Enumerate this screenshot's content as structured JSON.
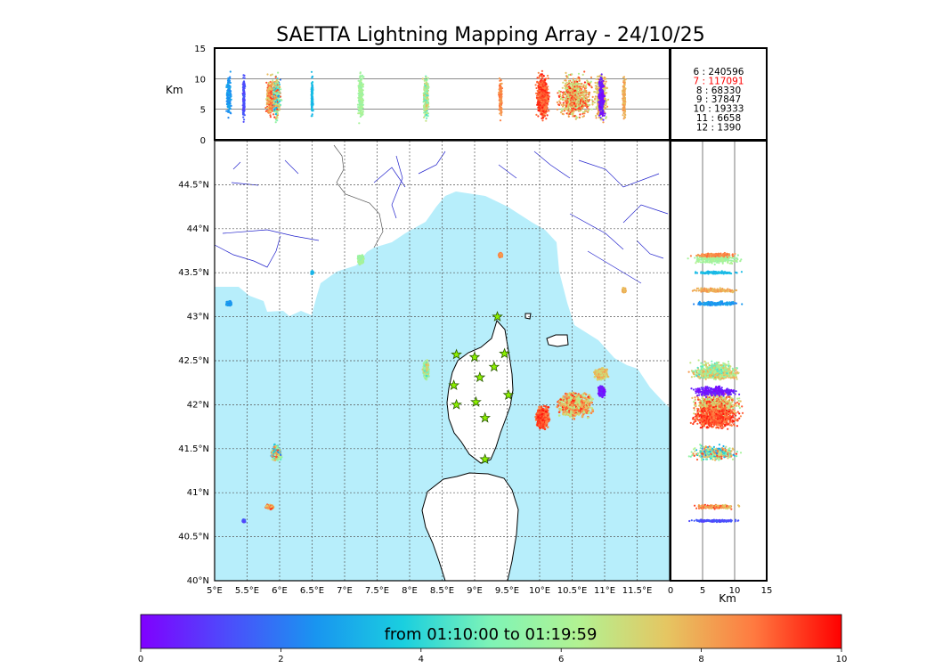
{
  "title": "SAETTA Lightning Mapping Array - 24/10/25",
  "chart_data": [
    {
      "type": "scatter",
      "panel": "map",
      "xlim": [
        5,
        12
      ],
      "ylim": [
        40,
        45
      ],
      "x_ticks": [
        "5°E",
        "5.5°E",
        "6°E",
        "6.5°E",
        "7°E",
        "7.5°E",
        "8°E",
        "8.5°E",
        "9°E",
        "9.5°E",
        "10°E",
        "10.5°E",
        "11°E",
        "11.5°E"
      ],
      "y_ticks": [
        "40°N",
        "40.5°N",
        "41°N",
        "41.5°N",
        "42°N",
        "42.5°N",
        "43°N",
        "43.5°N",
        "44°N",
        "44.5°N"
      ],
      "grid": true,
      "sea_color": "#b7eefb",
      "stations": [
        {
          "lon": 9.35,
          "lat": 43.0
        },
        {
          "lon": 8.72,
          "lat": 42.57
        },
        {
          "lon": 9.0,
          "lat": 42.54
        },
        {
          "lon": 9.46,
          "lat": 42.58
        },
        {
          "lon": 9.3,
          "lat": 42.43
        },
        {
          "lon": 9.08,
          "lat": 42.31
        },
        {
          "lon": 8.68,
          "lat": 42.22
        },
        {
          "lon": 9.52,
          "lat": 42.11
        },
        {
          "lon": 8.72,
          "lat": 42.0
        },
        {
          "lon": 9.02,
          "lat": 42.03
        },
        {
          "lon": 9.16,
          "lat": 41.85
        },
        {
          "lon": 9.16,
          "lat": 41.38
        }
      ],
      "clusters": [
        {
          "lon": 10.55,
          "lat": 42.0,
          "spread_lon": 0.32,
          "spread_lat": 0.17,
          "t_min": 6.0,
          "t_max": 9.8
        },
        {
          "lon": 10.05,
          "lat": 41.85,
          "spread_lon": 0.12,
          "spread_lat": 0.15,
          "t_min": 8.5,
          "t_max": 9.8
        },
        {
          "lon": 10.95,
          "lat": 42.35,
          "spread_lon": 0.12,
          "spread_lat": 0.08,
          "t_min": 6.5,
          "t_max": 8.5
        },
        {
          "lon": 10.95,
          "lat": 42.15,
          "spread_lon": 0.06,
          "spread_lat": 0.07,
          "t_min": 0.0,
          "t_max": 0.8
        },
        {
          "lon": 8.25,
          "lat": 42.4,
          "spread_lon": 0.05,
          "spread_lat": 0.12,
          "t_min": 4.2,
          "t_max": 7.8
        },
        {
          "lon": 5.95,
          "lat": 41.45,
          "spread_lon": 0.09,
          "spread_lat": 0.1,
          "t_min": 2.0,
          "t_max": 9.5
        },
        {
          "lon": 5.85,
          "lat": 40.84,
          "spread_lon": 0.07,
          "spread_lat": 0.03,
          "t_min": 7.0,
          "t_max": 9.5
        },
        {
          "lon": 5.22,
          "lat": 43.15,
          "spread_lon": 0.05,
          "spread_lat": 0.03,
          "t_min": 2.2,
          "t_max": 3.0
        },
        {
          "lon": 7.25,
          "lat": 43.65,
          "spread_lon": 0.05,
          "spread_lat": 0.06,
          "t_min": 5.5,
          "t_max": 6.3
        },
        {
          "lon": 9.4,
          "lat": 43.7,
          "spread_lon": 0.03,
          "spread_lat": 0.03,
          "t_min": 8.0,
          "t_max": 9.0
        },
        {
          "lon": 11.3,
          "lat": 43.3,
          "spread_lon": 0.03,
          "spread_lat": 0.03,
          "t_min": 7.5,
          "t_max": 8.5
        },
        {
          "lon": 6.5,
          "lat": 43.5,
          "spread_lon": 0.02,
          "spread_lat": 0.02,
          "t_min": 3.0,
          "t_max": 3.6
        },
        {
          "lon": 5.45,
          "lat": 40.68,
          "spread_lon": 0.02,
          "spread_lat": 0.02,
          "t_min": 1.0,
          "t_max": 1.6
        }
      ]
    },
    {
      "type": "scatter",
      "panel": "longitude-height",
      "xlim": [
        5,
        12
      ],
      "ylim": [
        0,
        15
      ],
      "ylabel": "Km",
      "y_ticks": [
        "0",
        "5",
        "10",
        "15"
      ],
      "hlines": [
        5,
        10
      ]
    },
    {
      "type": "scatter",
      "panel": "height-latitude",
      "xlim": [
        0,
        15
      ],
      "ylim": [
        40,
        45
      ],
      "xlabel": "Km",
      "x_ticks": [
        "0",
        "5",
        "10",
        "15"
      ],
      "vlines": [
        5,
        10
      ]
    }
  ],
  "counts": [
    {
      "label": "6  :   240596",
      "color": "#000000"
    },
    {
      "label": "7  :   117091",
      "color": "#ff0000"
    },
    {
      "label": "8  :    68330",
      "color": "#000000"
    },
    {
      "label": "9  :    37847",
      "color": "#000000"
    },
    {
      "label": "10  :     19333",
      "color": "#000000"
    },
    {
      "label": "11  :      6658",
      "color": "#000000"
    },
    {
      "label": "12  :      1390",
      "color": "#000000"
    }
  ],
  "colorbar": {
    "label": "from 01:10:00 to 01:19:59",
    "min": 0,
    "max": 10,
    "ticks": [
      "0",
      "2",
      "4",
      "6",
      "8",
      "10"
    ],
    "colormap": "rainbow"
  }
}
